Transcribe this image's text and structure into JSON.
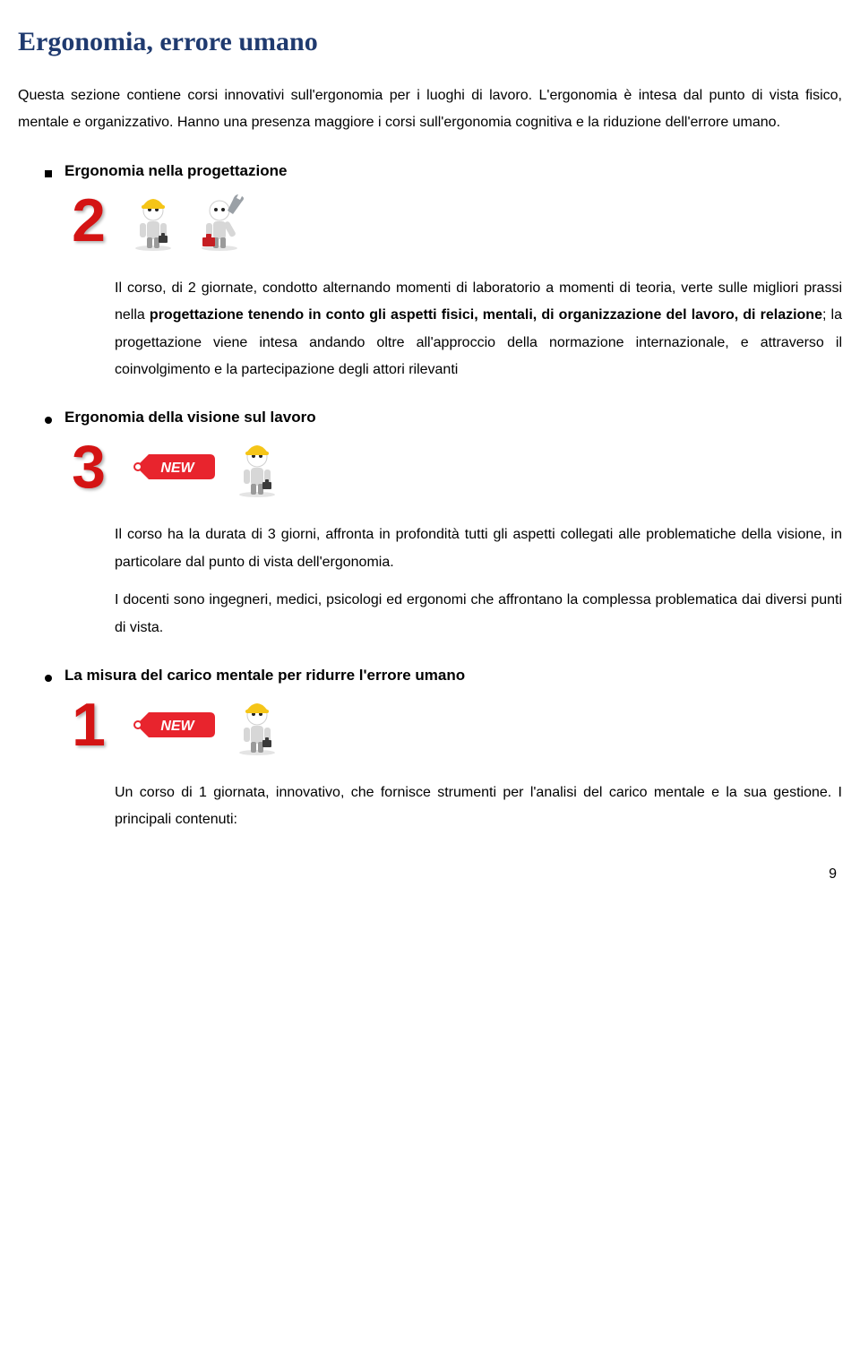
{
  "page_title": "Ergonomia, errore umano",
  "intro": {
    "p1": "Questa sezione contiene corsi innovativi sull'ergonomia per i luoghi di lavoro. L'ergonomia è intesa dal punto di vista fisico, mentale e organizzativo. Hanno una presenza maggiore i corsi sull'ergonomia cognitiva e la riduzione dell'errore umano."
  },
  "sections": [
    {
      "key": "s1",
      "bullet": "square",
      "title": "Ergonomia nella progettazione",
      "digit": "2",
      "show_new": false,
      "avatars": [
        "hardhat",
        "wrench"
      ],
      "body_parts": [
        {
          "text": "Il corso, di 2 giornate, condotto alternando momenti di laboratorio a momenti di teoria, verte sulle migliori prassi nella ",
          "bold": false
        },
        {
          "text": "progettazione tenendo in conto gli aspetti fisici, mentali, di organizzazione del lavoro, di relazione",
          "bold": true
        },
        {
          "text": "; la progettazione viene intesa andando oltre all'approccio della normazione internazionale, e attraverso il coinvolgimento e la partecipazione degli attori rilevanti",
          "bold": false
        }
      ]
    },
    {
      "key": "s2",
      "bullet": "dot",
      "title": "Ergonomia della visione sul lavoro",
      "digit": "3",
      "show_new": true,
      "avatars": [
        "hardhat"
      ],
      "body_parts": [
        {
          "text": "Il corso ha la durata di 3 giorni, affronta in profondità tutti gli aspetti collegati alle problematiche della visione, in particolare dal punto di vista dell'ergonomia.",
          "bold": false
        }
      ],
      "body2_parts": [
        {
          "text": "I docenti sono ingegneri, medici, psicologi ed ergonomi che affrontano la complessa problematica dai diversi punti di vista.",
          "bold": false
        }
      ]
    },
    {
      "key": "s3",
      "bullet": "dot",
      "title": "La misura del carico mentale per ridurre l'errore umano",
      "digit": "1",
      "show_new": true,
      "avatars": [
        "hardhat"
      ],
      "body_parts": [
        {
          "text": "Un corso di 1 giornata, innovativo, che fornisce strumenti per l'analisi del carico mentale e la sua gestione. I principali contenuti:",
          "bold": false
        }
      ]
    }
  ],
  "new_label": "NEW",
  "page_number": "9",
  "colors": {
    "title": "#1f3a6f",
    "digit": "#d41414",
    "new_tag": "#e8242d",
    "hardhat": "#f5c518",
    "body_grey": "#d7d7d7",
    "toolbox_red": "#c51e22",
    "wrench_grey": "#9aa0a6"
  }
}
